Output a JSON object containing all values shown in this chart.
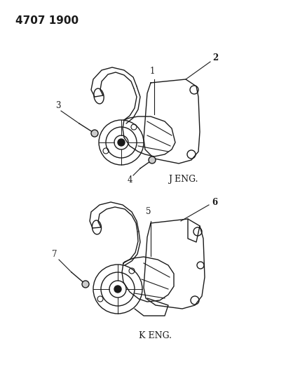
{
  "title": "4707 1900",
  "bg_color": "#ffffff",
  "text_color": "#1a1a1a",
  "diagram_color": "#1a1a1a",
  "label_j_eng": "J ENG.",
  "label_k_eng": "K ENG.",
  "figsize": [
    4.08,
    5.33
  ],
  "dpi": 100,
  "title_fontsize": 11,
  "label_fontsize": 9,
  "part_num_fontsize": 8.5
}
